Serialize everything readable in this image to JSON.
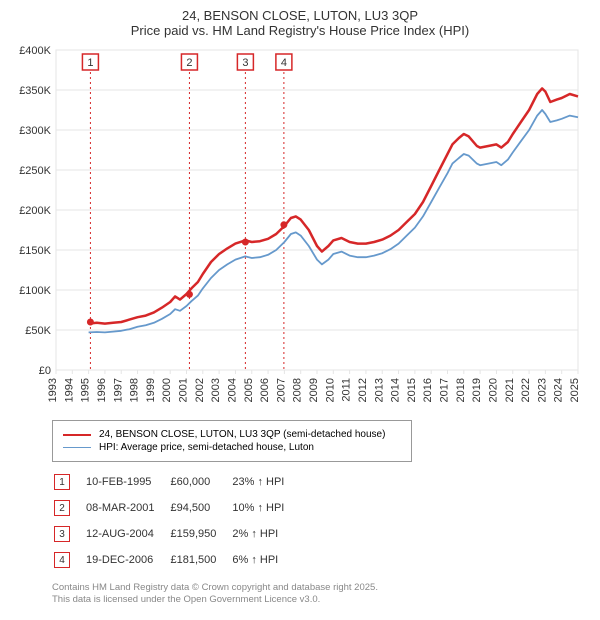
{
  "title": "24, BENSON CLOSE, LUTON, LU3 3QP",
  "subtitle": "Price paid vs. HM Land Registry's House Price Index (HPI)",
  "chart": {
    "type": "line",
    "background_color": "#ffffff",
    "grid_color": "#e5e5e5",
    "axis_color": "#e5e5e5",
    "text_color": "#333333",
    "tick_fontsize": 11,
    "title_fontsize": 13,
    "marker_box_stroke": "#d62728",
    "marker_box_fill": "#ffffff",
    "marker_guide_color": "#d62728",
    "marker_guide_dash": "2,3",
    "x": {
      "min": 1993,
      "max": 2025,
      "ticks": [
        1993,
        1994,
        1995,
        1996,
        1997,
        1998,
        1999,
        2000,
        2001,
        2002,
        2003,
        2004,
        2005,
        2006,
        2007,
        2008,
        2009,
        2010,
        2011,
        2012,
        2013,
        2014,
        2015,
        2016,
        2017,
        2018,
        2019,
        2020,
        2021,
        2022,
        2023,
        2024,
        2025
      ]
    },
    "y": {
      "min": 0,
      "max": 400000,
      "step": 50000,
      "prefix": "£",
      "suffix_k": "K",
      "ticks": [
        0,
        50000,
        100000,
        150000,
        200000,
        250000,
        300000,
        350000,
        400000
      ]
    },
    "series": [
      {
        "name": "price_paid",
        "label": "24, BENSON CLOSE, LUTON, LU3 3QP (semi-detached house)",
        "color": "#d62728",
        "width": 2.5,
        "data": [
          [
            1995.0,
            58000
          ],
          [
            1995.5,
            59000
          ],
          [
            1996.0,
            58000
          ],
          [
            1996.5,
            59000
          ],
          [
            1997.0,
            60000
          ],
          [
            1997.5,
            63000
          ],
          [
            1998.0,
            66000
          ],
          [
            1998.5,
            68000
          ],
          [
            1999.0,
            72000
          ],
          [
            1999.5,
            78000
          ],
          [
            2000.0,
            85000
          ],
          [
            2000.3,
            92000
          ],
          [
            2000.6,
            88000
          ],
          [
            2001.0,
            95000
          ],
          [
            2001.3,
            102000
          ],
          [
            2001.7,
            110000
          ],
          [
            2002.0,
            120000
          ],
          [
            2002.5,
            135000
          ],
          [
            2003.0,
            145000
          ],
          [
            2003.5,
            152000
          ],
          [
            2004.0,
            158000
          ],
          [
            2004.6,
            162000
          ],
          [
            2005.0,
            160000
          ],
          [
            2005.5,
            161000
          ],
          [
            2006.0,
            164000
          ],
          [
            2006.5,
            170000
          ],
          [
            2007.0,
            180000
          ],
          [
            2007.4,
            190000
          ],
          [
            2007.7,
            192000
          ],
          [
            2008.0,
            188000
          ],
          [
            2008.5,
            175000
          ],
          [
            2009.0,
            155000
          ],
          [
            2009.3,
            148000
          ],
          [
            2009.7,
            155000
          ],
          [
            2010.0,
            162000
          ],
          [
            2010.5,
            165000
          ],
          [
            2011.0,
            160000
          ],
          [
            2011.5,
            158000
          ],
          [
            2012.0,
            158000
          ],
          [
            2012.5,
            160000
          ],
          [
            2013.0,
            163000
          ],
          [
            2013.5,
            168000
          ],
          [
            2014.0,
            175000
          ],
          [
            2014.5,
            185000
          ],
          [
            2015.0,
            195000
          ],
          [
            2015.5,
            210000
          ],
          [
            2016.0,
            230000
          ],
          [
            2016.5,
            250000
          ],
          [
            2017.0,
            270000
          ],
          [
            2017.3,
            282000
          ],
          [
            2017.7,
            290000
          ],
          [
            2018.0,
            295000
          ],
          [
            2018.3,
            292000
          ],
          [
            2018.8,
            280000
          ],
          [
            2019.0,
            278000
          ],
          [
            2019.5,
            280000
          ],
          [
            2020.0,
            282000
          ],
          [
            2020.3,
            278000
          ],
          [
            2020.7,
            285000
          ],
          [
            2021.0,
            295000
          ],
          [
            2021.5,
            310000
          ],
          [
            2022.0,
            325000
          ],
          [
            2022.5,
            345000
          ],
          [
            2022.8,
            352000
          ],
          [
            2023.0,
            348000
          ],
          [
            2023.3,
            335000
          ],
          [
            2023.7,
            338000
          ],
          [
            2024.0,
            340000
          ],
          [
            2024.5,
            345000
          ],
          [
            2025.0,
            342000
          ]
        ]
      },
      {
        "name": "hpi",
        "label": "HPI: Average price, semi-detached house, Luton",
        "color": "#6699cc",
        "width": 1.8,
        "data": [
          [
            1995.0,
            47000
          ],
          [
            1995.5,
            47500
          ],
          [
            1996.0,
            47000
          ],
          [
            1996.5,
            48000
          ],
          [
            1997.0,
            49000
          ],
          [
            1997.5,
            51000
          ],
          [
            1998.0,
            54000
          ],
          [
            1998.5,
            56000
          ],
          [
            1999.0,
            59000
          ],
          [
            1999.5,
            64000
          ],
          [
            2000.0,
            70000
          ],
          [
            2000.3,
            76000
          ],
          [
            2000.6,
            74000
          ],
          [
            2001.0,
            80000
          ],
          [
            2001.3,
            86000
          ],
          [
            2001.7,
            93000
          ],
          [
            2002.0,
            102000
          ],
          [
            2002.5,
            115000
          ],
          [
            2003.0,
            125000
          ],
          [
            2003.5,
            132000
          ],
          [
            2004.0,
            138000
          ],
          [
            2004.6,
            142000
          ],
          [
            2005.0,
            140000
          ],
          [
            2005.5,
            141000
          ],
          [
            2006.0,
            144000
          ],
          [
            2006.5,
            150000
          ],
          [
            2007.0,
            160000
          ],
          [
            2007.4,
            170000
          ],
          [
            2007.7,
            172000
          ],
          [
            2008.0,
            168000
          ],
          [
            2008.5,
            155000
          ],
          [
            2009.0,
            138000
          ],
          [
            2009.3,
            132000
          ],
          [
            2009.7,
            138000
          ],
          [
            2010.0,
            145000
          ],
          [
            2010.5,
            148000
          ],
          [
            2011.0,
            143000
          ],
          [
            2011.5,
            141000
          ],
          [
            2012.0,
            141000
          ],
          [
            2012.5,
            143000
          ],
          [
            2013.0,
            146000
          ],
          [
            2013.5,
            151000
          ],
          [
            2014.0,
            158000
          ],
          [
            2014.5,
            168000
          ],
          [
            2015.0,
            178000
          ],
          [
            2015.5,
            192000
          ],
          [
            2016.0,
            210000
          ],
          [
            2016.5,
            228000
          ],
          [
            2017.0,
            246000
          ],
          [
            2017.3,
            258000
          ],
          [
            2017.7,
            265000
          ],
          [
            2018.0,
            270000
          ],
          [
            2018.3,
            268000
          ],
          [
            2018.8,
            258000
          ],
          [
            2019.0,
            256000
          ],
          [
            2019.5,
            258000
          ],
          [
            2020.0,
            260000
          ],
          [
            2020.3,
            256000
          ],
          [
            2020.7,
            263000
          ],
          [
            2021.0,
            272000
          ],
          [
            2021.5,
            286000
          ],
          [
            2022.0,
            300000
          ],
          [
            2022.5,
            318000
          ],
          [
            2022.8,
            325000
          ],
          [
            2023.0,
            320000
          ],
          [
            2023.3,
            310000
          ],
          [
            2023.7,
            312000
          ],
          [
            2024.0,
            314000
          ],
          [
            2024.5,
            318000
          ],
          [
            2025.0,
            316000
          ]
        ]
      }
    ],
    "markers": [
      {
        "n": "1",
        "x": 1995.11,
        "date": "10-FEB-1995",
        "price": "£60,000",
        "pct": "23%",
        "arrow": "↑",
        "suffix": "HPI"
      },
      {
        "n": "2",
        "x": 2001.18,
        "date": "08-MAR-2001",
        "price": "£94,500",
        "pct": "10%",
        "arrow": "↑",
        "suffix": "HPI"
      },
      {
        "n": "3",
        "x": 2004.61,
        "date": "12-AUG-2004",
        "price": "£159,950",
        "pct": "2%",
        "arrow": "↑",
        "suffix": "HPI"
      },
      {
        "n": "4",
        "x": 2006.97,
        "date": "19-DEC-2006",
        "price": "£181,500",
        "pct": "6%",
        "arrow": "↑",
        "suffix": "HPI"
      }
    ],
    "marker_points": [
      {
        "x": 1995.11,
        "y": 60000
      },
      {
        "x": 2001.18,
        "y": 94500
      },
      {
        "x": 2004.61,
        "y": 159950
      },
      {
        "x": 2006.97,
        "y": 181500
      }
    ]
  },
  "legend": {
    "items": [
      {
        "label_key": "chart.series.0.label",
        "color_key": "chart.series.0.color",
        "width": 2.5
      },
      {
        "label_key": "chart.series.1.label",
        "color_key": "chart.series.1.color",
        "width": 1.8
      }
    ]
  },
  "footer": {
    "line1": "Contains HM Land Registry data © Crown copyright and database right 2025.",
    "line2": "This data is licensed under the Open Government Licence v3.0."
  }
}
